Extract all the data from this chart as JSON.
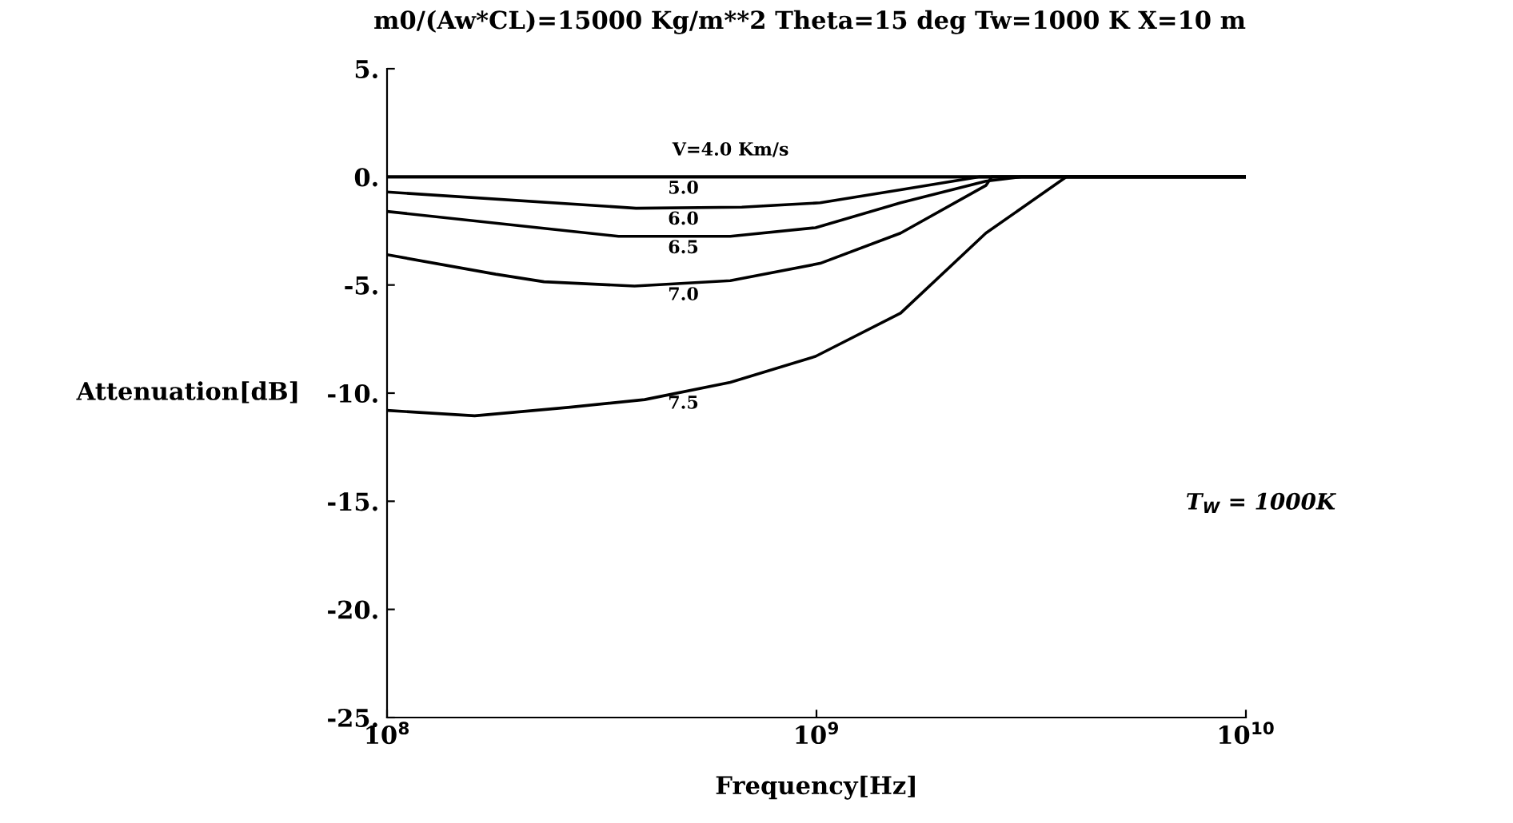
{
  "chart_data": {
    "type": "line",
    "title": "m0/(Aw*CL)=15000 Kg/m**2 Theta=15 deg Tw=1000 K X=10 m",
    "xlabel": "Frequency[Hz]",
    "ylabel": "Attenuation[dB]",
    "log": "x",
    "xlim": [
      100000000.0,
      10000000000.0
    ],
    "ylim": [
      -25,
      5
    ],
    "xticks": [
      {
        "value": 100000000.0,
        "label": "10$^{8}$"
      },
      {
        "value": 1000000000.0,
        "label": "10$^{9}$"
      },
      {
        "value": 10000000000.0,
        "label": "10$^{10}$"
      }
    ],
    "yticks": [
      {
        "value": 5,
        "label": "5."
      },
      {
        "value": 0,
        "label": "0."
      },
      {
        "value": -5,
        "label": "-5."
      },
      {
        "value": -10,
        "label": "-10."
      },
      {
        "value": -15,
        "label": "-15."
      },
      {
        "value": -20,
        "label": "-20."
      },
      {
        "value": -25,
        "label": "-25."
      }
    ],
    "grid": false,
    "legend": false,
    "marker": "none",
    "line_style": "solid",
    "series": [
      {
        "name": "V=4.0 Km/s",
        "color": "#000000",
        "x": [
          100000000.0,
          10000000000.0
        ],
        "values": [
          0,
          0
        ]
      },
      {
        "name": "5.0",
        "color": "#000000",
        "x": [
          100000000.0,
          10000000000.0
        ],
        "values": [
          0,
          0
        ]
      },
      {
        "name": "6.0",
        "color": "#000000",
        "x": [
          100000000.0,
          380000000.0,
          670000000.0,
          1020000000.0,
          1570000000.0,
          2400000000.0,
          10000000000.0
        ],
        "values": [
          -0.7,
          -1.45,
          -1.4,
          -1.2,
          -0.6,
          0,
          0
        ]
      },
      {
        "name": "6.5",
        "color": "#000000",
        "x": [
          100000000.0,
          225000000.0,
          346000000.0,
          630000000.0,
          995000000.0,
          1570000000.0,
          2480000000.0,
          3000000000.0,
          10000000000.0
        ],
        "values": [
          -1.6,
          -2.35,
          -2.75,
          -2.75,
          -2.35,
          -1.2,
          -0.2,
          0,
          0
        ]
      },
      {
        "name": "7.0",
        "color": "#000000",
        "x": [
          100000000.0,
          179000000.0,
          232000000.0,
          377000000.0,
          630000000.0,
          1020000000.0,
          1570000000.0,
          2480000000.0,
          2560000000.0,
          10000000000.0
        ],
        "values": [
          -3.6,
          -4.5,
          -4.85,
          -5.05,
          -4.8,
          -4.0,
          -2.6,
          -0.4,
          0,
          0
        ]
      },
      {
        "name": "7.5",
        "color": "#000000",
        "x": [
          100000000.0,
          160000000.0,
          267000000.0,
          398000000.0,
          630000000.0,
          995000000.0,
          1570000000.0,
          2480000000.0,
          3820000000.0,
          10000000000.0
        ],
        "values": [
          -10.8,
          -11.05,
          -10.65,
          -10.3,
          -9.5,
          -8.3,
          -6.3,
          -2.6,
          0,
          0
        ]
      }
    ],
    "annotations": [
      "T$_{W}$ = 1000K"
    ]
  }
}
